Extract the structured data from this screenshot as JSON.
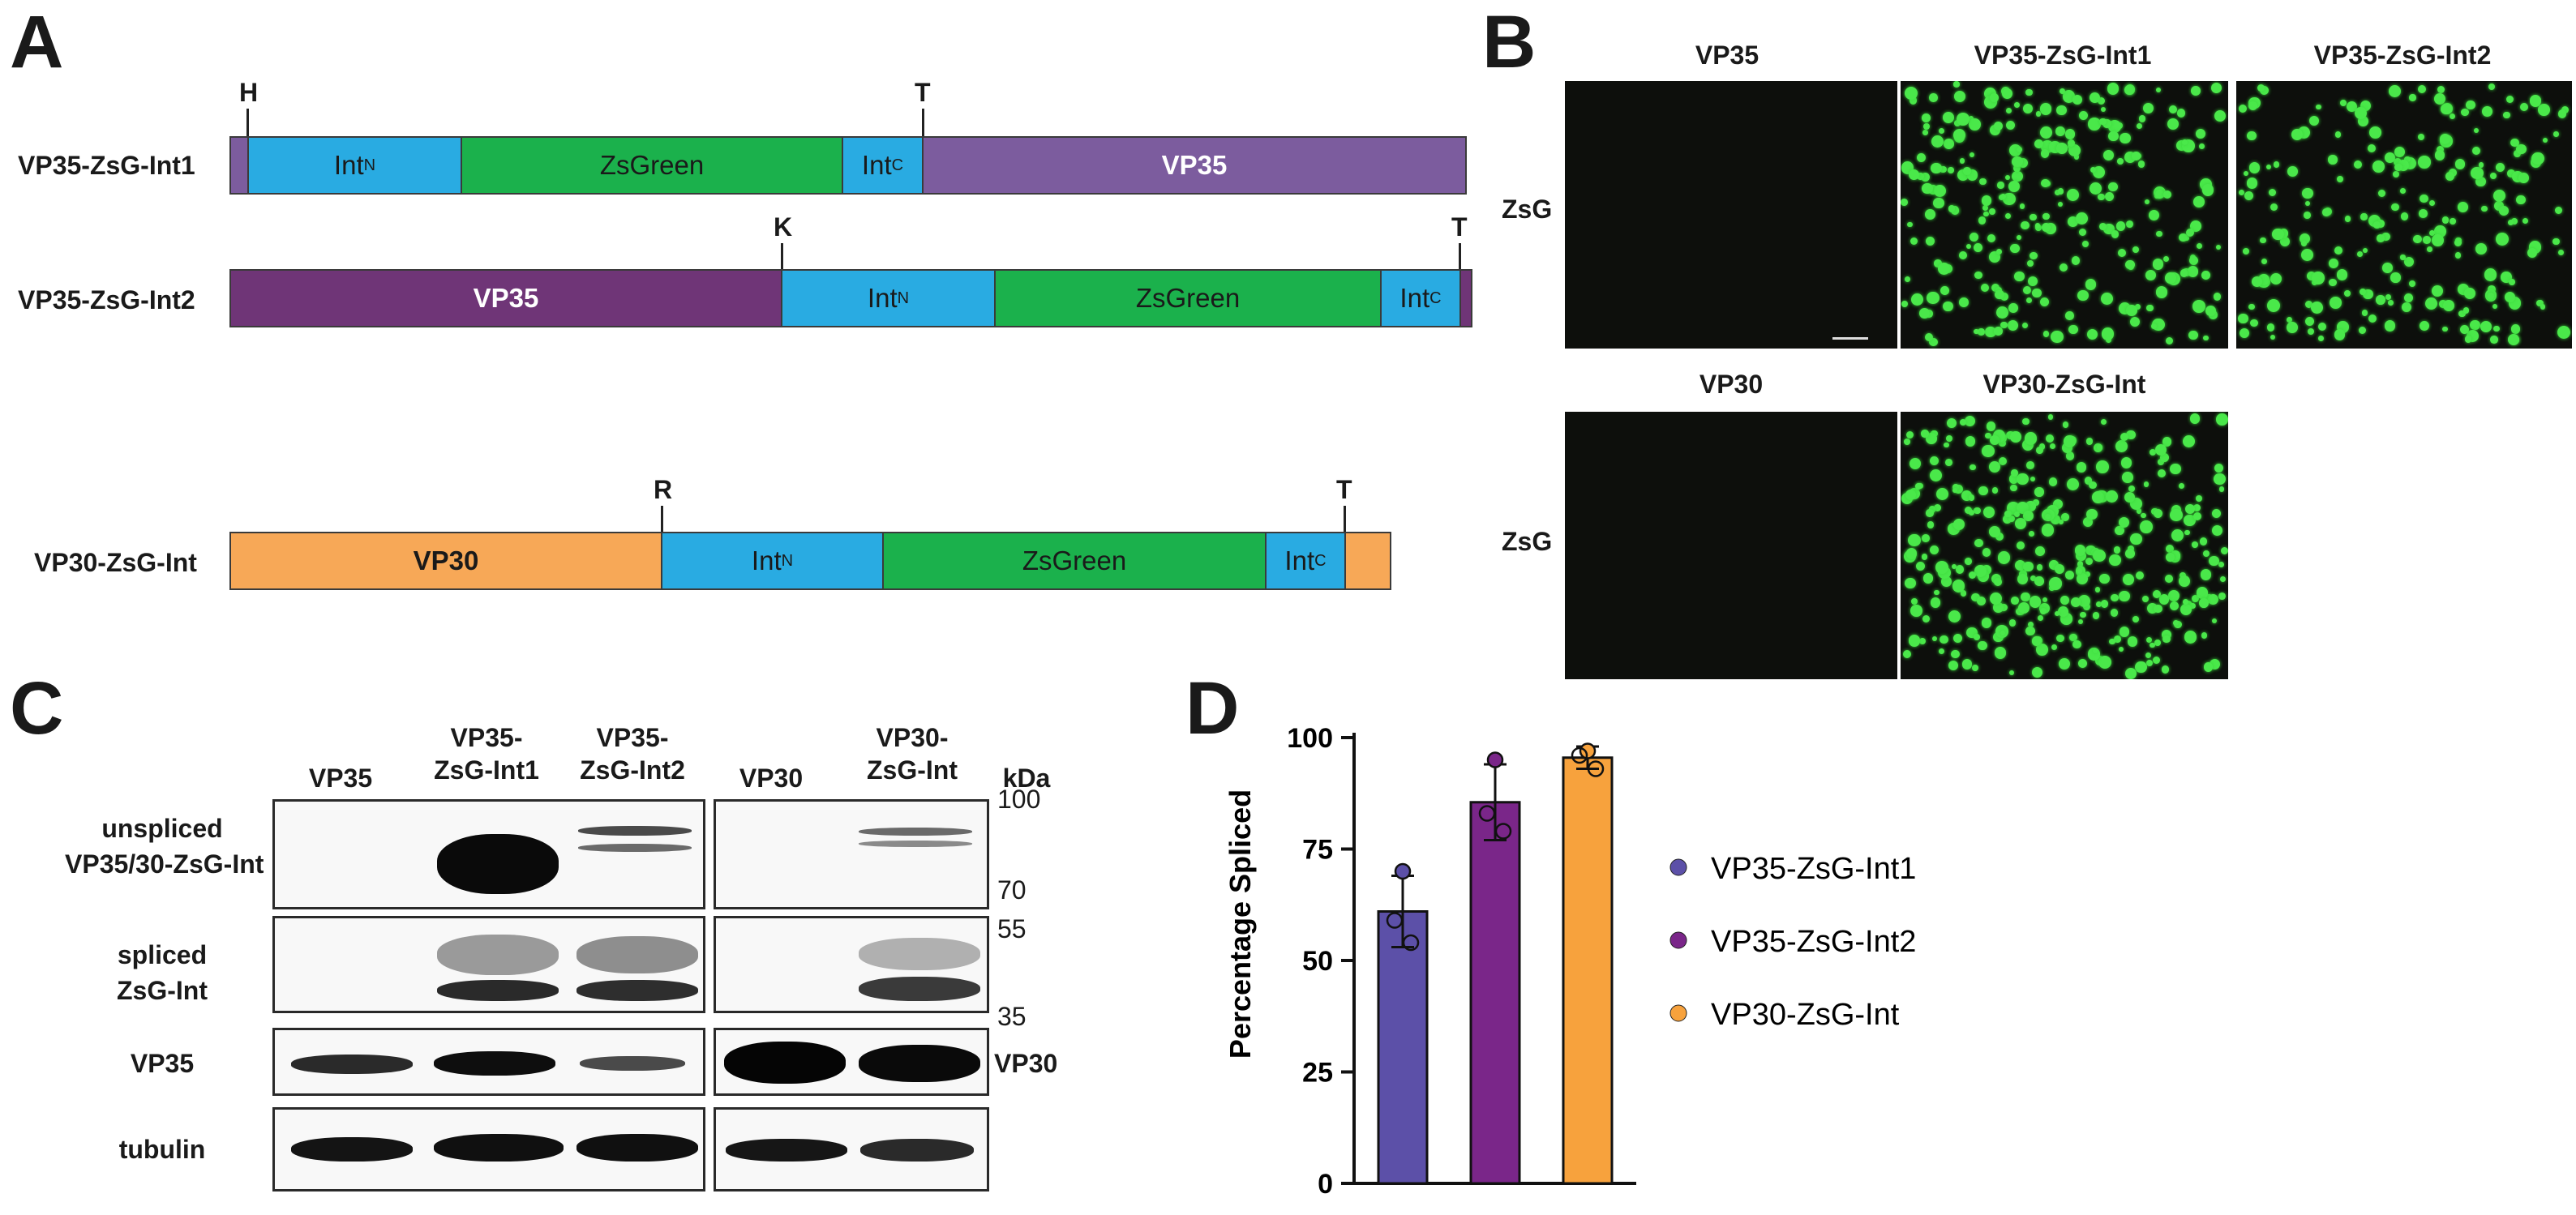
{
  "panels": {
    "a": "A",
    "b": "B",
    "c": "C",
    "d": "D"
  },
  "panel_a": {
    "constructs": [
      {
        "name": "VP35-ZsG-Int1",
        "sites": [
          "H",
          "T"
        ],
        "segments": [
          "Int",
          "N",
          "ZsGreen",
          "Int",
          "C",
          "VP35"
        ]
      },
      {
        "name": "VP35-ZsG-Int2",
        "sites": [
          "K",
          "T"
        ],
        "segments": [
          "VP35",
          "Int",
          "N",
          "ZsGreen",
          "Int",
          "C"
        ]
      },
      {
        "name": "VP30-ZsG-Int",
        "sites": [
          "R",
          "T"
        ],
        "segments": [
          "VP30",
          "Int",
          "N",
          "ZsGreen",
          "Int",
          "C"
        ]
      }
    ],
    "colors": {
      "int": "#29abe2",
      "zsgreen": "#1bb14c",
      "vp35_1": "#7c5c9e",
      "vp35_2": "#6f3577",
      "vp30": "#f7a857"
    }
  },
  "panel_b": {
    "row1_headers": [
      "VP35",
      "VP35-ZsG-Int1",
      "VP35-ZsG-Int2"
    ],
    "row2_headers": [
      "VP30",
      "VP30-ZsG-Int"
    ],
    "row_label": "ZsG"
  },
  "panel_c": {
    "lanes_left": [
      "VP35",
      "VP35-\nZsG-Int1",
      "VP35-\nZsG-Int2"
    ],
    "lanes_right": [
      "VP30",
      "VP30-\nZsG-Int"
    ],
    "kda_label": "kDa",
    "markers": [
      "100",
      "70",
      "55",
      "35"
    ],
    "rows": [
      "unspliced\nVP35/30-ZsG-Int",
      "spliced\nZsG-Int",
      "VP35",
      "tubulin"
    ],
    "right_label_vp30": "VP30"
  },
  "chart_data": {
    "type": "bar",
    "ylabel": "Percentage Spliced",
    "ylim": [
      0,
      100
    ],
    "yticks": [
      "0",
      "25",
      "50",
      "75",
      "100"
    ],
    "categories": [
      "VP35-ZsG-Int1",
      "VP35-ZsG-Int2",
      "VP30-ZsG-Int"
    ],
    "values": [
      61,
      85.5,
      95.5
    ],
    "errors": [
      8,
      8.5,
      2.5
    ],
    "points": [
      [
        70,
        59,
        54
      ],
      [
        95,
        83,
        79
      ],
      [
        97,
        96,
        93
      ]
    ],
    "colors": [
      "#5c50a8",
      "#7a2689",
      "#f7a23d"
    ],
    "legend": [
      "VP35-ZsG-Int1",
      "VP35-ZsG-Int2",
      "VP30-ZsG-Int"
    ]
  }
}
